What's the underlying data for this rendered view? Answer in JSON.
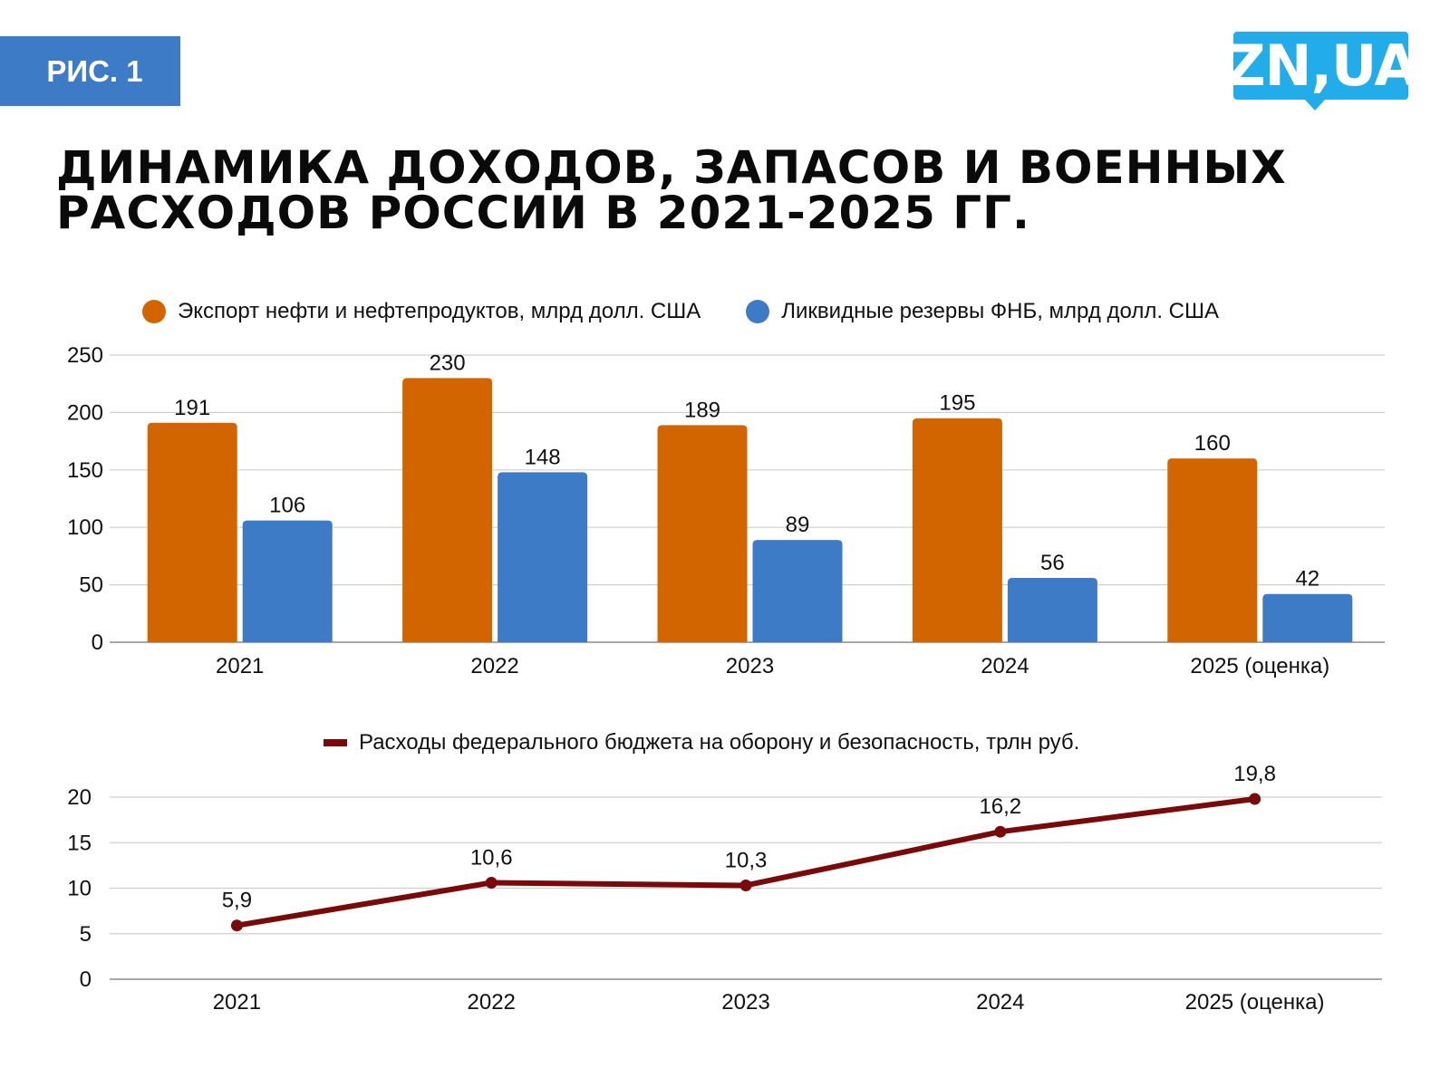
{
  "badge": {
    "label": "РИС. 1"
  },
  "logo": {
    "text": "ZN,UA",
    "color": "#22adea"
  },
  "title": {
    "line1": "ДИНАМИКА ДОХОДОВ, ЗАПАСОВ И ВОЕННЫХ",
    "line2": "РАСХОДОВ РОССИИ В 2021-2025 ГГ."
  },
  "colors": {
    "oil": "#d26500",
    "reserves": "#3e7bc6",
    "defense": "#7a0a0a",
    "grid": "#cfcfcf",
    "axis": "#8a8a8a",
    "badge": "#3e7bc6"
  },
  "chart_data": [
    {
      "type": "bar",
      "title": "",
      "categories": [
        "2021",
        "2022",
        "2023",
        "2024",
        "2025 (оценка)"
      ],
      "series": [
        {
          "name": "Экспорт нефти и нефтепродуктов, млрд долл. США",
          "color": "#d26500",
          "values": [
            191,
            230,
            189,
            195,
            160
          ]
        },
        {
          "name": "Ликвидные резервы ФНБ, млрд долл. США",
          "color": "#3e7bc6",
          "values": [
            106,
            148,
            89,
            56,
            42
          ]
        }
      ],
      "xlabel": "",
      "ylabel": "",
      "ylim": [
        0,
        250
      ],
      "yticks": [
        0,
        50,
        100,
        150,
        200,
        250
      ],
      "grid": true,
      "legend_position": "top",
      "data_labels": true
    },
    {
      "type": "line",
      "title": "",
      "categories": [
        "2021",
        "2022",
        "2023",
        "2024",
        "2025 (оценка)"
      ],
      "series": [
        {
          "name": "Расходы федерального бюджета на оборону и безопасность, трлн руб.",
          "color": "#7a0a0a",
          "values": [
            5.9,
            10.6,
            10.3,
            16.2,
            19.8
          ],
          "labels": [
            "5,9",
            "10,6",
            "10,3",
            "16,2",
            "19,8"
          ]
        }
      ],
      "xlabel": "",
      "ylabel": "",
      "ylim": [
        0,
        20
      ],
      "yticks": [
        0,
        5,
        10,
        15,
        20
      ],
      "grid": true,
      "legend_position": "top",
      "data_labels": true
    }
  ]
}
